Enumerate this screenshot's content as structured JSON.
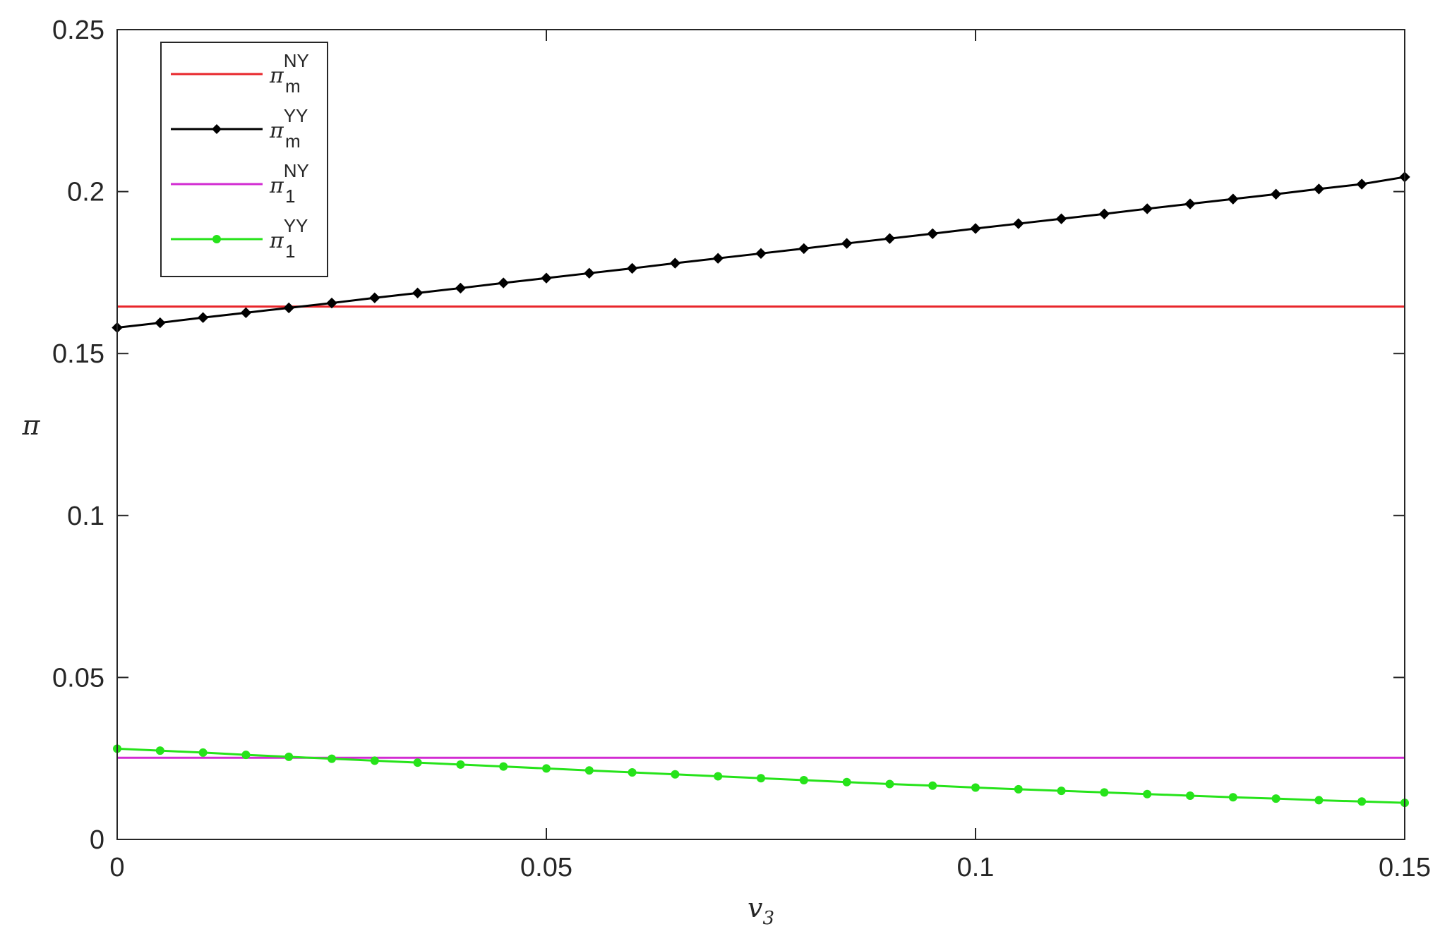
{
  "chart_data": {
    "type": "line",
    "xlabel": {
      "base": "v",
      "sub": "3"
    },
    "ylabel": "π",
    "xlim": [
      0,
      0.15
    ],
    "ylim": [
      0,
      0.25
    ],
    "xticks": [
      0,
      0.05,
      0.1,
      0.15
    ],
    "xtick_labels": [
      "0",
      "0.05",
      "0.1",
      "0.15"
    ],
    "yticks": [
      0,
      0.05,
      0.1,
      0.15,
      0.2,
      0.25
    ],
    "ytick_labels": [
      "0",
      "0.05",
      "0.1",
      "0.15",
      "0.2",
      "0.25"
    ],
    "grid": false,
    "legend_position": "top-left",
    "series": [
      {
        "name": "π_m^NY",
        "legend": {
          "base": "π",
          "sub": "m",
          "sup": "NY"
        },
        "color": "#e8262b",
        "marker": "none",
        "x": [
          0,
          0.15
        ],
        "y": [
          0.1645,
          0.1645
        ]
      },
      {
        "name": "π_m^YY",
        "legend": {
          "base": "π",
          "sub": "m",
          "sup": "YY"
        },
        "color": "#000000",
        "marker": "diamond",
        "x": [
          0,
          0.005,
          0.01,
          0.015,
          0.02,
          0.025,
          0.03,
          0.035,
          0.04,
          0.045,
          0.05,
          0.055,
          0.06,
          0.065,
          0.07,
          0.075,
          0.08,
          0.085,
          0.09,
          0.095,
          0.1,
          0.105,
          0.11,
          0.115,
          0.12,
          0.125,
          0.13,
          0.135,
          0.14,
          0.145,
          0.15
        ],
        "y": [
          0.158,
          0.1595,
          0.1611,
          0.1626,
          0.1641,
          0.1656,
          0.1672,
          0.1687,
          0.1702,
          0.1718,
          0.1733,
          0.1748,
          0.1763,
          0.1779,
          0.1794,
          0.1809,
          0.1824,
          0.184,
          0.1855,
          0.187,
          0.1886,
          0.1901,
          0.1916,
          0.1931,
          0.1947,
          0.1962,
          0.1977,
          0.1992,
          0.2008,
          0.2023,
          0.2045
        ]
      },
      {
        "name": "π_1^NY",
        "legend": {
          "base": "π",
          "sub": "1",
          "sup": "NY"
        },
        "color": "#d22bd2",
        "marker": "none",
        "x": [
          0,
          0.15
        ],
        "y": [
          0.0252,
          0.0252
        ]
      },
      {
        "name": "π_1^YY",
        "legend": {
          "base": "π",
          "sub": "1",
          "sup": "YY"
        },
        "color": "#26e31a",
        "marker": "dot",
        "x": [
          0,
          0.005,
          0.01,
          0.015,
          0.02,
          0.025,
          0.03,
          0.035,
          0.04,
          0.045,
          0.05,
          0.055,
          0.06,
          0.065,
          0.07,
          0.075,
          0.08,
          0.085,
          0.09,
          0.095,
          0.1,
          0.105,
          0.11,
          0.115,
          0.12,
          0.125,
          0.13,
          0.135,
          0.14,
          0.145,
          0.15
        ],
        "y": [
          0.028,
          0.0274,
          0.0268,
          0.0261,
          0.0255,
          0.0249,
          0.0243,
          0.0237,
          0.0231,
          0.0225,
          0.0219,
          0.0213,
          0.0207,
          0.0201,
          0.0195,
          0.0189,
          0.0183,
          0.0177,
          0.0171,
          0.0166,
          0.016,
          0.0155,
          0.015,
          0.0145,
          0.014,
          0.0135,
          0.013,
          0.0126,
          0.0121,
          0.0117,
          0.0113
        ]
      }
    ]
  }
}
